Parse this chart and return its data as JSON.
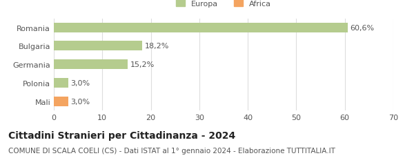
{
  "categories": [
    "Romania",
    "Bulgaria",
    "Germania",
    "Polonia",
    "Mali"
  ],
  "values": [
    60.6,
    18.2,
    15.2,
    3.0,
    3.0
  ],
  "labels": [
    "60,6%",
    "18,2%",
    "15,2%",
    "3,0%",
    "3,0%"
  ],
  "colors": [
    "#b5cc8e",
    "#b5cc8e",
    "#b5cc8e",
    "#b5cc8e",
    "#f4a460"
  ],
  "legend_items": [
    {
      "label": "Europa",
      "color": "#b5cc8e"
    },
    {
      "label": "Africa",
      "color": "#f4a460"
    }
  ],
  "xlim": [
    0,
    70
  ],
  "xticks": [
    0,
    10,
    20,
    30,
    40,
    50,
    60,
    70
  ],
  "title": "Cittadini Stranieri per Cittadinanza - 2024",
  "subtitle": "COMUNE DI SCALA COELI (CS) - Dati ISTAT al 1° gennaio 2024 - Elaborazione TUTTITALIA.IT",
  "title_fontsize": 10,
  "subtitle_fontsize": 7.5,
  "label_fontsize": 8,
  "tick_fontsize": 8,
  "bar_height": 0.52,
  "background_color": "#ffffff",
  "grid_color": "#dddddd",
  "text_color": "#555555"
}
